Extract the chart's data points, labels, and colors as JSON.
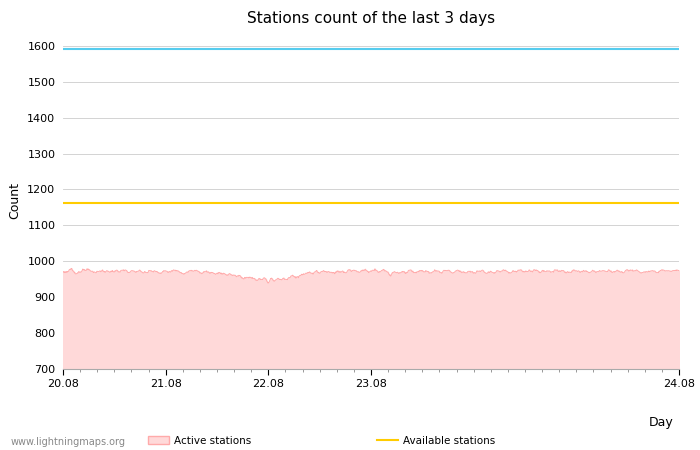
{
  "title": "Stations count of the last 3 days",
  "xlabel": "Day",
  "ylabel": "Count",
  "ylim": [
    700,
    1640
  ],
  "xlim": [
    0,
    288
  ],
  "yticks": [
    700,
    800,
    900,
    1000,
    1100,
    1200,
    1300,
    1400,
    1500,
    1600
  ],
  "highest_ever": 1590,
  "available_stations": 1163,
  "active_mean": 972,
  "active_noise_std": 8,
  "fill_color": "#ffd9d9",
  "line_color": "#ffaaaa",
  "highest_line_color": "#55ccee",
  "available_line_color": "#ffcc00",
  "background_color": "#ffffff",
  "grid_color": "#cccccc",
  "title_fontsize": 11,
  "axis_label_fontsize": 9,
  "tick_fontsize": 8,
  "watermark": "www.lightningmaps.org",
  "fig_width": 7.0,
  "fig_height": 4.5,
  "dpi": 100
}
